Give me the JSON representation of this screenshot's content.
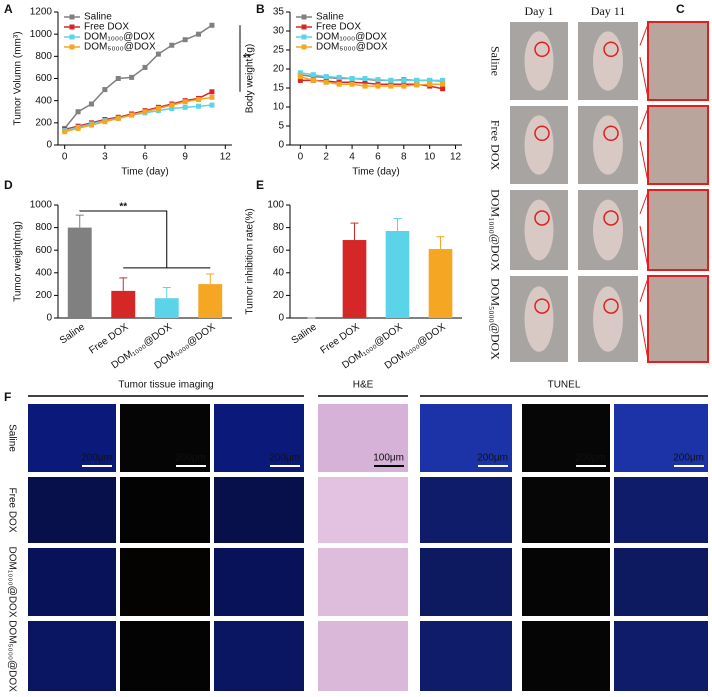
{
  "chart_data": [
    {
      "type": "line",
      "panel": "A",
      "ylabel": "Tumor Volumn (mm³)",
      "xlabel": "Time (day)",
      "annotation": "**",
      "x": [
        0,
        1,
        2,
        3,
        4,
        5,
        6,
        7,
        8,
        9,
        10,
        11
      ],
      "xlim": [
        -0.5,
        12.5
      ],
      "xticks": [
        0,
        3,
        6,
        9,
        12
      ],
      "ylim": [
        0,
        1200
      ],
      "yticks": [
        0,
        200,
        400,
        600,
        800,
        1000,
        1200
      ],
      "series": [
        {
          "name": "Saline",
          "color": "#808080",
          "values": [
            150,
            300,
            370,
            500,
            600,
            610,
            700,
            820,
            900,
            950,
            1000,
            1080
          ]
        },
        {
          "name": "Free DOX",
          "color": "#d62728",
          "values": [
            140,
            170,
            200,
            230,
            250,
            280,
            310,
            340,
            370,
            400,
            420,
            480
          ]
        },
        {
          "name": "DOM₁₀₀₀@DOX",
          "color": "#5bd3e8",
          "values": [
            130,
            160,
            190,
            220,
            240,
            270,
            290,
            310,
            330,
            340,
            350,
            360
          ]
        },
        {
          "name": "DOM₅₀₀₀@DOX",
          "color": "#f5a623",
          "values": [
            120,
            150,
            180,
            210,
            240,
            270,
            300,
            330,
            360,
            390,
            410,
            430
          ]
        }
      ]
    },
    {
      "type": "line",
      "panel": "B",
      "ylabel": "Body weight (g)",
      "xlabel": "Time (day)",
      "x": [
        0,
        1,
        2,
        3,
        4,
        5,
        6,
        7,
        8,
        9,
        10,
        11
      ],
      "xlim": [
        -0.8,
        12.5
      ],
      "xticks": [
        0,
        2,
        4,
        6,
        8,
        10,
        12
      ],
      "ylim": [
        0,
        35
      ],
      "yticks": [
        0,
        5,
        10,
        15,
        20,
        25,
        30,
        35
      ],
      "series": [
        {
          "name": "Saline",
          "color": "#808080",
          "values": [
            18.5,
            18,
            17.8,
            17.5,
            17.5,
            17.3,
            17,
            17,
            17.2,
            17,
            17,
            16.8
          ]
        },
        {
          "name": "Free DOX",
          "color": "#d62728",
          "values": [
            17,
            17,
            16.8,
            16.5,
            16.5,
            16.3,
            16,
            16,
            16,
            16,
            15.5,
            14.8
          ]
        },
        {
          "name": "DOM₁₀₀₀@DOX",
          "color": "#5bd3e8",
          "values": [
            19,
            18.5,
            18,
            17.8,
            17.5,
            17.5,
            17.2,
            17,
            17,
            17,
            17,
            17
          ]
        },
        {
          "name": "DOM₅₀₀₀@DOX",
          "color": "#f5a623",
          "values": [
            18,
            17,
            16.5,
            16,
            16,
            15.5,
            15.5,
            15.5,
            15.5,
            15.8,
            16,
            16
          ]
        }
      ]
    },
    {
      "type": "bar",
      "panel": "D",
      "ylabel": "Tumor weight(mg)",
      "annotation": "**",
      "categories": [
        "Saline",
        "Free DOX",
        "DOM₁₀₀₀@DOX",
        "DOM₅₀₀₀@DOX"
      ],
      "values": [
        800,
        240,
        175,
        300
      ],
      "errors": [
        110,
        115,
        95,
        90
      ],
      "colors": [
        "#808080",
        "#d62728",
        "#5bd3e8",
        "#f5a623"
      ],
      "ylim": [
        0,
        1000
      ],
      "yticks": [
        0,
        200,
        400,
        600,
        800,
        1000
      ]
    },
    {
      "type": "bar",
      "panel": "E",
      "ylabel": "Tumor inhibition rate(%)",
      "categories": [
        "Saline",
        "Free DOX",
        "DOM₁₀₀₀@DOX",
        "DOM₅₀₀₀@DOX"
      ],
      "values": [
        0,
        69,
        77,
        61
      ],
      "errors": [
        0,
        15,
        11,
        11
      ],
      "colors": [
        "#808080",
        "#d62728",
        "#5bd3e8",
        "#f5a623"
      ],
      "ylim": [
        0,
        100
      ],
      "yticks": [
        0,
        20,
        40,
        60,
        80,
        100
      ]
    }
  ],
  "panel_c": {
    "label": "C",
    "days": [
      "Day 1",
      "Day 11"
    ],
    "rows": [
      "Saline",
      "Free DOX",
      "DOM₁₀₀₀@DOX",
      "DOM₅₀₀₀@DOX"
    ]
  },
  "panel_f": {
    "label": "F",
    "headers": [
      "Tumor tissue imaging",
      "H&E",
      "TUNEL"
    ],
    "rows": [
      "Saline",
      "Free DOX",
      "DOM₁₀₀₀@DOX",
      "DOM₅₀₀₀@DOX"
    ],
    "scale_bars": [
      "200μm",
      "200μm",
      "200μm",
      "100μm",
      "200μm",
      "200μm",
      "200μm"
    ]
  }
}
